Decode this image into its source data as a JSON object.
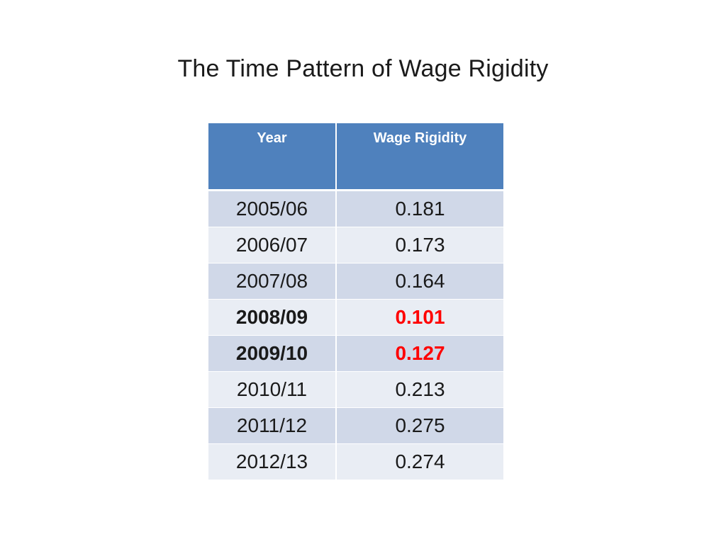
{
  "slide": {
    "title": "The Time Pattern of Wage Rigidity"
  },
  "table": {
    "headers": [
      "Year",
      "Wage Rigidity"
    ],
    "rows": [
      {
        "year": "2005/06",
        "value": "0.181",
        "highlight": false
      },
      {
        "year": "2006/07",
        "value": "0.173",
        "highlight": false
      },
      {
        "year": "2007/08",
        "value": "0.164",
        "highlight": false
      },
      {
        "year": "2008/09",
        "value": "0.101",
        "highlight": true
      },
      {
        "year": "2009/10",
        "value": "0.127",
        "highlight": true
      },
      {
        "year": "2010/11",
        "value": "0.213",
        "highlight": false
      },
      {
        "year": "2011/12",
        "value": "0.275",
        "highlight": false
      },
      {
        "year": "2012/13",
        "value": "0.274",
        "highlight": false
      }
    ]
  },
  "colors": {
    "header_bg": "#4f81bd",
    "row_dark": "#d0d8e8",
    "row_light": "#e9edf4",
    "highlight_text": "#ff0000"
  }
}
